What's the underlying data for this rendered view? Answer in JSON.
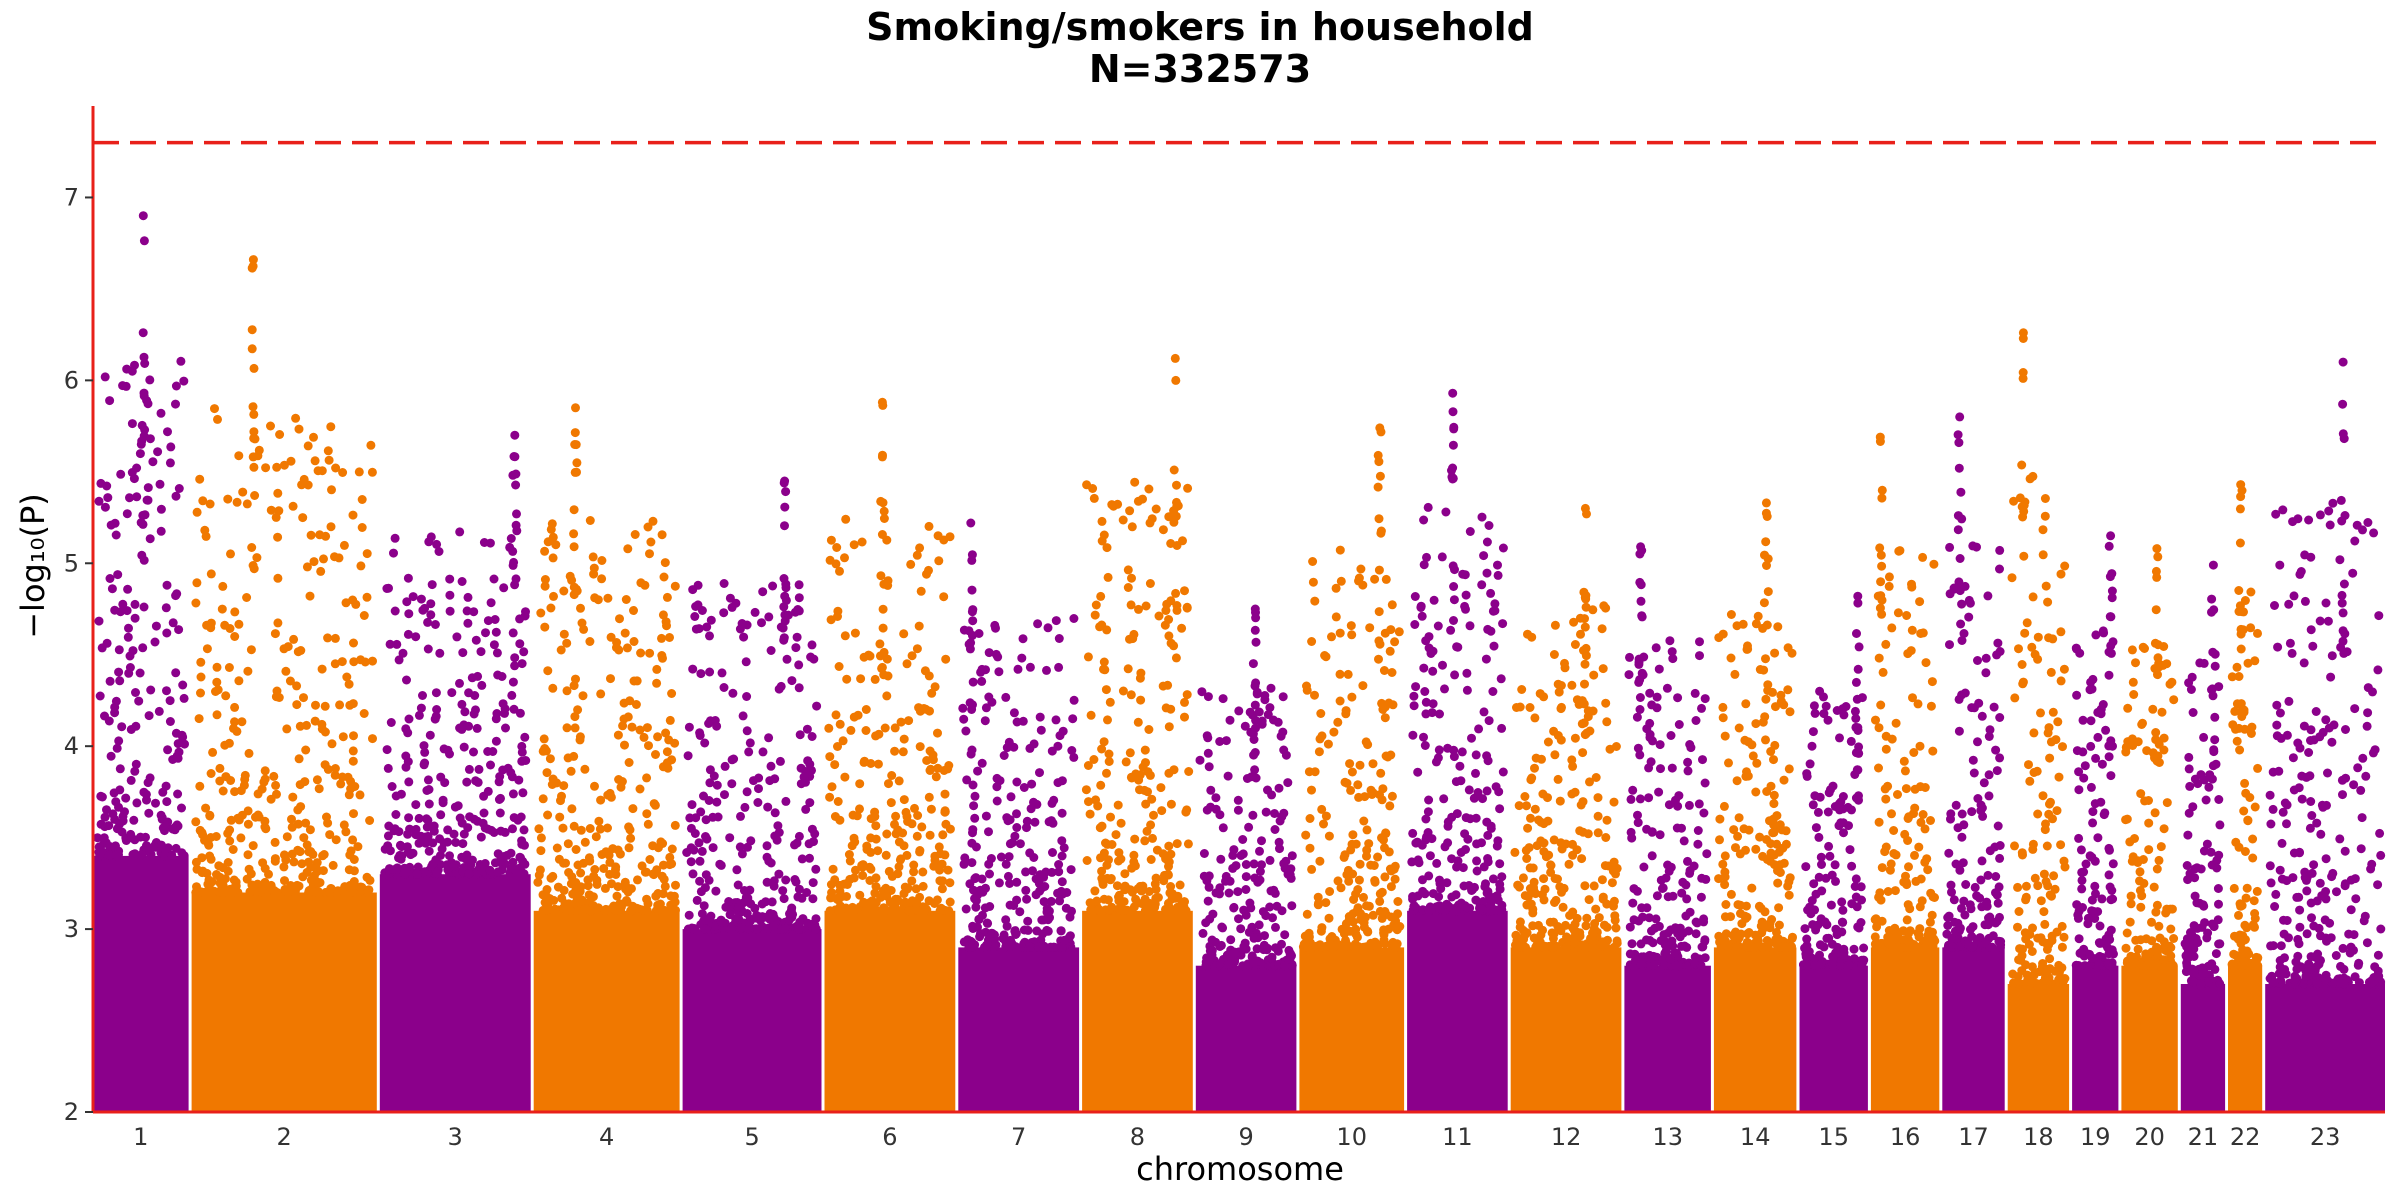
{
  "chart_data": {
    "type": "scatter",
    "title": "Smoking/smokers in household",
    "subtitle": "N=332573",
    "xlabel": "chromosome",
    "ylabel": "−log₁₀(P)",
    "ylim": [
      2,
      7.5
    ],
    "yticks": [
      2,
      3,
      4,
      5,
      6,
      7
    ],
    "significance_line": 7.3,
    "grid": false,
    "colors": {
      "odd": "#8b008b",
      "even": "#f07800",
      "threshold": "#e8201a",
      "axis": "#e8201a"
    },
    "chromosomes": [
      {
        "label": "1",
        "base": 3.4,
        "top": 6.9
      },
      {
        "label": "2",
        "base": 3.2,
        "top": 6.66
      },
      {
        "label": "3",
        "base": 3.3,
        "top": 5.7
      },
      {
        "label": "4",
        "base": 3.1,
        "top": 5.85
      },
      {
        "label": "5",
        "base": 3.0,
        "top": 5.45
      },
      {
        "label": "6",
        "base": 3.1,
        "top": 5.88
      },
      {
        "label": "7",
        "base": 2.9,
        "top": 5.22
      },
      {
        "label": "8",
        "base": 3.1,
        "top": 6.12
      },
      {
        "label": "9",
        "base": 2.8,
        "top": 4.75
      },
      {
        "label": "10",
        "base": 2.9,
        "top": 5.74
      },
      {
        "label": "11",
        "base": 3.1,
        "top": 5.93
      },
      {
        "label": "12",
        "base": 2.9,
        "top": 5.3
      },
      {
        "label": "13",
        "base": 2.8,
        "top": 5.09
      },
      {
        "label": "14",
        "base": 2.9,
        "top": 5.33
      },
      {
        "label": "15",
        "base": 2.8,
        "top": 4.82
      },
      {
        "label": "16",
        "base": 2.9,
        "top": 5.69
      },
      {
        "label": "17",
        "base": 2.9,
        "top": 5.8
      },
      {
        "label": "18",
        "base": 2.7,
        "top": 6.26
      },
      {
        "label": "19",
        "base": 2.8,
        "top": 5.15
      },
      {
        "label": "20",
        "base": 2.8,
        "top": 5.08
      },
      {
        "label": "21",
        "base": 2.7,
        "top": 4.99
      },
      {
        "label": "22",
        "base": 2.8,
        "top": 5.43
      },
      {
        "label": "23",
        "base": 2.7,
        "top": 6.1
      }
    ]
  }
}
